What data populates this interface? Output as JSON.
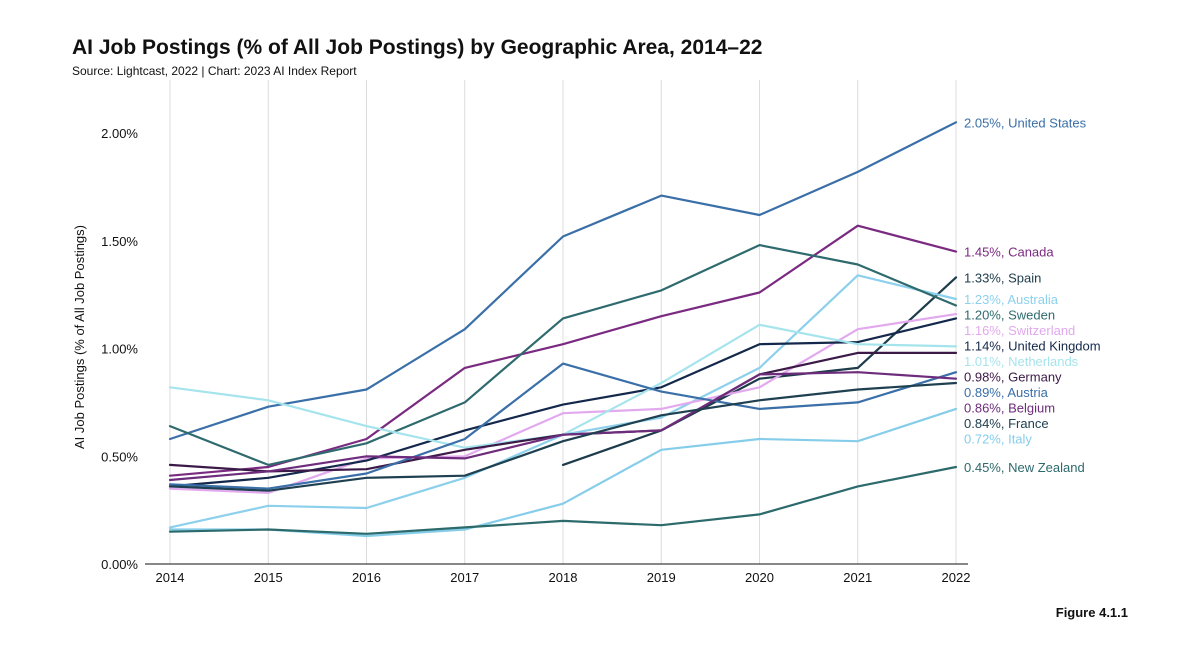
{
  "header": {
    "title": "AI Job Postings (% of All Job Postings) by Geographic Area, 2014–22",
    "subtitle": "Source: Lightcast, 2022 | Chart: 2023 AI Index Report"
  },
  "figure_label": "Figure 4.1.1",
  "chart_data": {
    "type": "line",
    "title": "AI Job Postings (% of All Job Postings) by Geographic Area, 2014–22",
    "xlabel": "",
    "ylabel": "AI Job Postings (% of All Job Postings)",
    "x": [
      2014,
      2015,
      2016,
      2017,
      2018,
      2019,
      2020,
      2021,
      2022
    ],
    "ylim": [
      0,
      2.2
    ],
    "yticks": [
      0,
      0.5,
      1.0,
      1.5,
      2.0
    ],
    "ytick_labels": [
      "0.00%",
      "0.50%",
      "1.00%",
      "1.50%",
      "2.00%"
    ],
    "grid": "vertical",
    "series": [
      {
        "name": "United States",
        "color": "#3a6fa8",
        "label": "2.05%, United States",
        "values": [
          0.58,
          0.73,
          0.81,
          1.09,
          1.52,
          1.71,
          1.62,
          1.82,
          2.05
        ]
      },
      {
        "name": "Canada",
        "color": "#7a2a80",
        "label": "1.45%, Canada",
        "values": [
          0.41,
          0.45,
          0.58,
          0.91,
          1.02,
          1.15,
          1.26,
          1.57,
          1.45
        ]
      },
      {
        "name": "Spain",
        "color": "#1d3b4a",
        "label": "1.33%, Spain",
        "values": [
          null,
          null,
          null,
          null,
          0.46,
          0.62,
          0.86,
          0.91,
          1.33
        ]
      },
      {
        "name": "Australia",
        "color": "#8cd0ec",
        "label": "1.23%, Australia",
        "values": [
          0.17,
          0.27,
          0.26,
          0.4,
          0.6,
          0.68,
          0.91,
          1.34,
          1.23
        ]
      },
      {
        "name": "Sweden",
        "color": "#2f6b6e",
        "label": "1.20%, Sweden",
        "values": [
          0.64,
          0.46,
          0.56,
          0.75,
          1.14,
          1.27,
          1.48,
          1.39,
          1.2
        ]
      },
      {
        "name": "Switzerland",
        "color": "#e2a9ee",
        "label": "1.16%, Switzerland",
        "values": [
          0.35,
          0.33,
          0.49,
          0.5,
          0.7,
          0.72,
          0.82,
          1.09,
          1.16
        ]
      },
      {
        "name": "United Kingdom",
        "color": "#14284b",
        "label": "1.14%, United Kingdom",
        "values": [
          0.36,
          0.4,
          0.48,
          0.62,
          0.74,
          0.82,
          1.02,
          1.03,
          1.14
        ]
      },
      {
        "name": "Netherlands",
        "color": "#a5e4ec",
        "label": "1.01%, Netherlands",
        "values": [
          0.82,
          0.76,
          0.64,
          0.54,
          0.6,
          0.84,
          1.11,
          1.02,
          1.01
        ]
      },
      {
        "name": "Germany",
        "color": "#3c1a48",
        "label": "0.98%, Germany",
        "values": [
          0.46,
          0.43,
          0.44,
          0.53,
          0.6,
          0.62,
          0.88,
          0.98,
          0.98
        ]
      },
      {
        "name": "Austria",
        "color": "#3a6fa8",
        "label": "0.89%, Austria",
        "values": [
          0.37,
          0.35,
          0.42,
          0.58,
          0.93,
          0.8,
          0.72,
          0.75,
          0.89
        ]
      },
      {
        "name": "Belgium",
        "color": "#6e2c7c",
        "label": "0.86%, Belgium",
        "values": [
          0.39,
          0.43,
          0.5,
          0.49,
          0.6,
          0.62,
          0.88,
          0.89,
          0.86
        ]
      },
      {
        "name": "France",
        "color": "#1f4050",
        "label": "0.84%, France",
        "values": [
          0.36,
          0.34,
          0.4,
          0.41,
          0.57,
          0.69,
          0.76,
          0.81,
          0.84
        ]
      },
      {
        "name": "Italy",
        "color": "#86cdea",
        "label": "0.72%, Italy",
        "values": [
          0.16,
          0.16,
          0.13,
          0.16,
          0.28,
          0.53,
          0.58,
          0.57,
          0.72
        ]
      },
      {
        "name": "New Zealand",
        "color": "#2d6a6c",
        "label": "0.45%, New Zealand",
        "values": [
          0.15,
          0.16,
          0.14,
          0.17,
          0.2,
          0.18,
          0.23,
          0.36,
          0.45
        ]
      }
    ]
  }
}
